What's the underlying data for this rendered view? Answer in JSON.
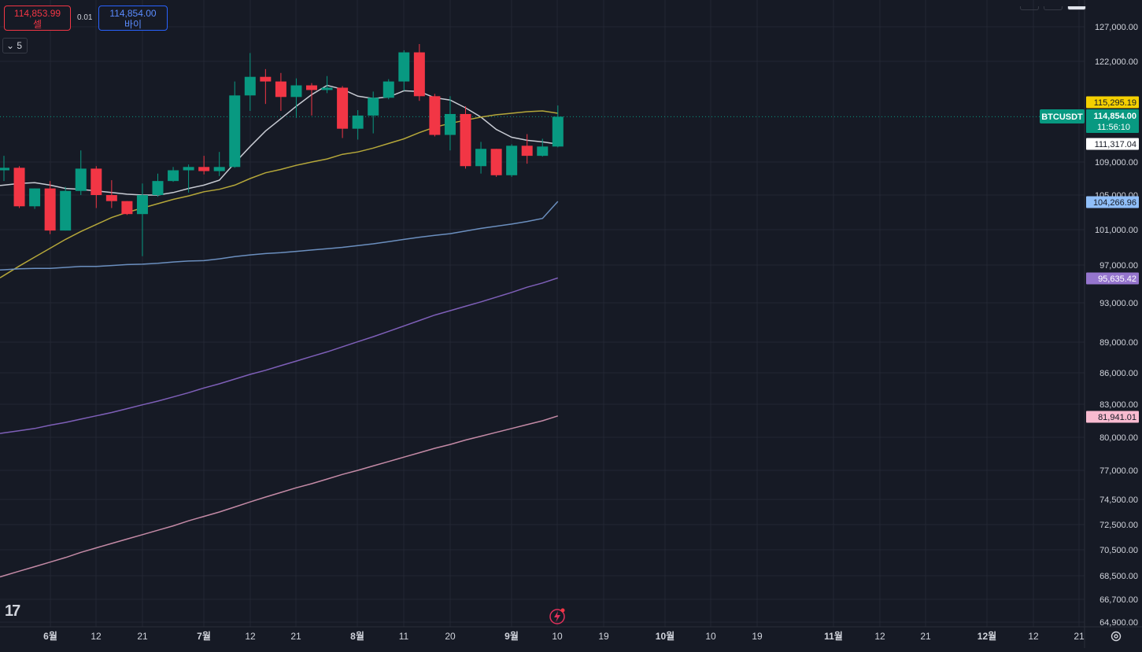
{
  "symbol": "BTCUSDT",
  "sell": {
    "price": "114,853.99",
    "label": "셀"
  },
  "buy": {
    "price": "114,854.00",
    "label": "바이"
  },
  "spread": "0.01",
  "interval": "5",
  "logo_text": "17",
  "colors": {
    "background": "#161a25",
    "up": "#089981",
    "down": "#f23645",
    "grid": "#232733",
    "axis_text": "#d1d4dc",
    "ma_white": "#c8cbd3",
    "ma_gold": "#b5a73a",
    "ma_blue": "#6b8fbf",
    "ma_purple": "#7e5fb8",
    "ma_pink": "#c48aa6"
  },
  "chart_data": {
    "type": "candlestick",
    "timeframe": "weekly",
    "y_ticks": [
      127000,
      122000,
      109000,
      105000,
      101000,
      97000,
      93000,
      89000,
      86000,
      83000,
      80000,
      77000,
      74500,
      72500,
      70500,
      68500,
      66700,
      64900
    ],
    "x_ticks": [
      "6월",
      "12",
      "21",
      "7월",
      "12",
      "21",
      "8월",
      "11",
      "20",
      "9월",
      "10",
      "19",
      "10월",
      "10",
      "19",
      "11월",
      "12",
      "21",
      "12월",
      "12",
      "21"
    ],
    "x_tick_bold": [
      true,
      false,
      false,
      true,
      false,
      false,
      true,
      false,
      false,
      true,
      false,
      false,
      true,
      false,
      false,
      true,
      false,
      false,
      true,
      false,
      false
    ],
    "candles": [
      {
        "o": 108000,
        "h": 109800,
        "l": 106700,
        "c": 108300
      },
      {
        "o": 108300,
        "h": 108500,
        "l": 103500,
        "c": 103700
      },
      {
        "o": 103700,
        "h": 105800,
        "l": 103400,
        "c": 105800
      },
      {
        "o": 105800,
        "h": 106700,
        "l": 100500,
        "c": 100900
      },
      {
        "o": 100900,
        "h": 106000,
        "l": 100900,
        "c": 105500
      },
      {
        "o": 105500,
        "h": 110500,
        "l": 105000,
        "c": 108200
      },
      {
        "o": 108200,
        "h": 108500,
        "l": 103500,
        "c": 105000
      },
      {
        "o": 105000,
        "h": 106800,
        "l": 103500,
        "c": 104300
      },
      {
        "o": 104300,
        "h": 104300,
        "l": 102700,
        "c": 102800
      },
      {
        "o": 102800,
        "h": 106400,
        "l": 98000,
        "c": 105000
      },
      {
        "o": 105000,
        "h": 107600,
        "l": 104800,
        "c": 106700
      },
      {
        "o": 106700,
        "h": 108400,
        "l": 106600,
        "c": 108000
      },
      {
        "o": 108000,
        "h": 108700,
        "l": 105300,
        "c": 108400
      },
      {
        "o": 108400,
        "h": 109800,
        "l": 107500,
        "c": 107900
      },
      {
        "o": 107900,
        "h": 110300,
        "l": 107300,
        "c": 108400
      },
      {
        "o": 108400,
        "h": 119400,
        "l": 108300,
        "c": 117600
      },
      {
        "o": 117600,
        "h": 123200,
        "l": 115600,
        "c": 120000
      },
      {
        "o": 120000,
        "h": 121000,
        "l": 116500,
        "c": 119400
      },
      {
        "o": 119400,
        "h": 120500,
        "l": 115600,
        "c": 117400
      },
      {
        "o": 117400,
        "h": 119800,
        "l": 114700,
        "c": 118900
      },
      {
        "o": 118900,
        "h": 119200,
        "l": 115000,
        "c": 118300
      },
      {
        "o": 118300,
        "h": 120100,
        "l": 117900,
        "c": 118600
      },
      {
        "o": 118600,
        "h": 118800,
        "l": 112100,
        "c": 113300
      },
      {
        "o": 113300,
        "h": 115700,
        "l": 111900,
        "c": 115000
      },
      {
        "o": 115000,
        "h": 118100,
        "l": 112700,
        "c": 117300
      },
      {
        "o": 117300,
        "h": 119700,
        "l": 117100,
        "c": 119400
      },
      {
        "o": 119400,
        "h": 123600,
        "l": 118200,
        "c": 123300
      },
      {
        "o": 123300,
        "h": 124500,
        "l": 116900,
        "c": 117500
      },
      {
        "o": 117500,
        "h": 117800,
        "l": 112300,
        "c": 112500
      },
      {
        "o": 112500,
        "h": 117500,
        "l": 110500,
        "c": 115200
      },
      {
        "o": 115200,
        "h": 116200,
        "l": 108200,
        "c": 108500
      },
      {
        "o": 108500,
        "h": 111600,
        "l": 107600,
        "c": 110700
      },
      {
        "o": 110700,
        "h": 110700,
        "l": 107200,
        "c": 107400
      },
      {
        "o": 107400,
        "h": 111300,
        "l": 107200,
        "c": 111100
      },
      {
        "o": 111100,
        "h": 112600,
        "l": 108800,
        "c": 109800
      },
      {
        "o": 109800,
        "h": 112000,
        "l": 109700,
        "c": 111000
      },
      {
        "o": 111000,
        "h": 116300,
        "l": 110900,
        "c": 114854
      }
    ],
    "moving_averages": [
      {
        "id": "ma-white",
        "color_key": "ma_white",
        "last": 111317.04,
        "values": [
          106200,
          106400,
          106500,
          106200,
          105800,
          105700,
          105500,
          105300,
          105100,
          105000,
          105000,
          105300,
          105800,
          106200,
          106800,
          108900,
          111000,
          113000,
          114600,
          116200,
          117700,
          118900,
          118400,
          117500,
          117200,
          117400,
          118200,
          118100,
          117300,
          117000,
          116000,
          114800,
          113200,
          112200,
          111800,
          111600,
          111317.04
        ]
      },
      {
        "id": "ma-gold",
        "color_key": "ma_gold",
        "last": 115295.19,
        "values": [
          95900,
          96900,
          97900,
          98900,
          99900,
          100800,
          101600,
          102400,
          103000,
          103500,
          104000,
          104500,
          104900,
          105400,
          105700,
          106200,
          107000,
          107700,
          108100,
          108600,
          109000,
          109400,
          110000,
          110300,
          110800,
          111400,
          112000,
          112800,
          113500,
          114000,
          114400,
          114800,
          115100,
          115300,
          115500,
          115600,
          115295.19
        ]
      },
      {
        "id": "ma-blue",
        "color_key": "ma_blue",
        "last": 104266.96,
        "values": [
          96500,
          96600,
          96650,
          96650,
          96750,
          96850,
          96850,
          96950,
          97050,
          97100,
          97200,
          97350,
          97450,
          97500,
          97700,
          97950,
          98150,
          98300,
          98400,
          98550,
          98700,
          98850,
          99000,
          99200,
          99400,
          99650,
          99900,
          100150,
          100350,
          100550,
          100850,
          101150,
          101400,
          101650,
          101950,
          102300,
          104266.96
        ]
      },
      {
        "id": "ma-purple",
        "color_key": "ma_purple",
        "last": 95635.42,
        "values": [
          80400,
          80600,
          80800,
          81100,
          81350,
          81650,
          81950,
          82250,
          82600,
          82950,
          83300,
          83700,
          84100,
          84550,
          84950,
          85400,
          85850,
          86250,
          86700,
          87150,
          87600,
          88050,
          88550,
          89050,
          89550,
          90100,
          90650,
          91200,
          91750,
          92200,
          92650,
          93100,
          93600,
          94100,
          94650,
          95100,
          95635.42
        ]
      },
      {
        "id": "ma-pink",
        "color_key": "ma_pink",
        "last": 81941.01,
        "values": [
          68500,
          68850,
          69200,
          69550,
          69900,
          70300,
          70650,
          71000,
          71350,
          71700,
          72050,
          72400,
          72800,
          73150,
          73500,
          73900,
          74300,
          74700,
          75100,
          75500,
          75850,
          76250,
          76650,
          77000,
          77400,
          77800,
          78200,
          78600,
          79000,
          79350,
          79750,
          80100,
          80450,
          80800,
          81150,
          81500,
          81941.01
        ]
      }
    ],
    "price_labels": [
      {
        "text": "115,295.19",
        "bg": "#f5d000",
        "fg": "#161a25"
      },
      {
        "text": "114,854.00",
        "sub": "11:56:10",
        "bg": "#089981",
        "fg": "#ffffff"
      },
      {
        "text": "111,317.04",
        "bg": "#ffffff",
        "fg": "#161a25"
      },
      {
        "text": "104,266.96",
        "bg": "#90bff9",
        "fg": "#161a25"
      },
      {
        "text": "95,635.42",
        "bg": "#9575cd",
        "fg": "#ffffff"
      },
      {
        "text": "81,941.01",
        "bg": "#f8bbd0",
        "fg": "#161a25"
      }
    ],
    "current_price": 114854
  }
}
